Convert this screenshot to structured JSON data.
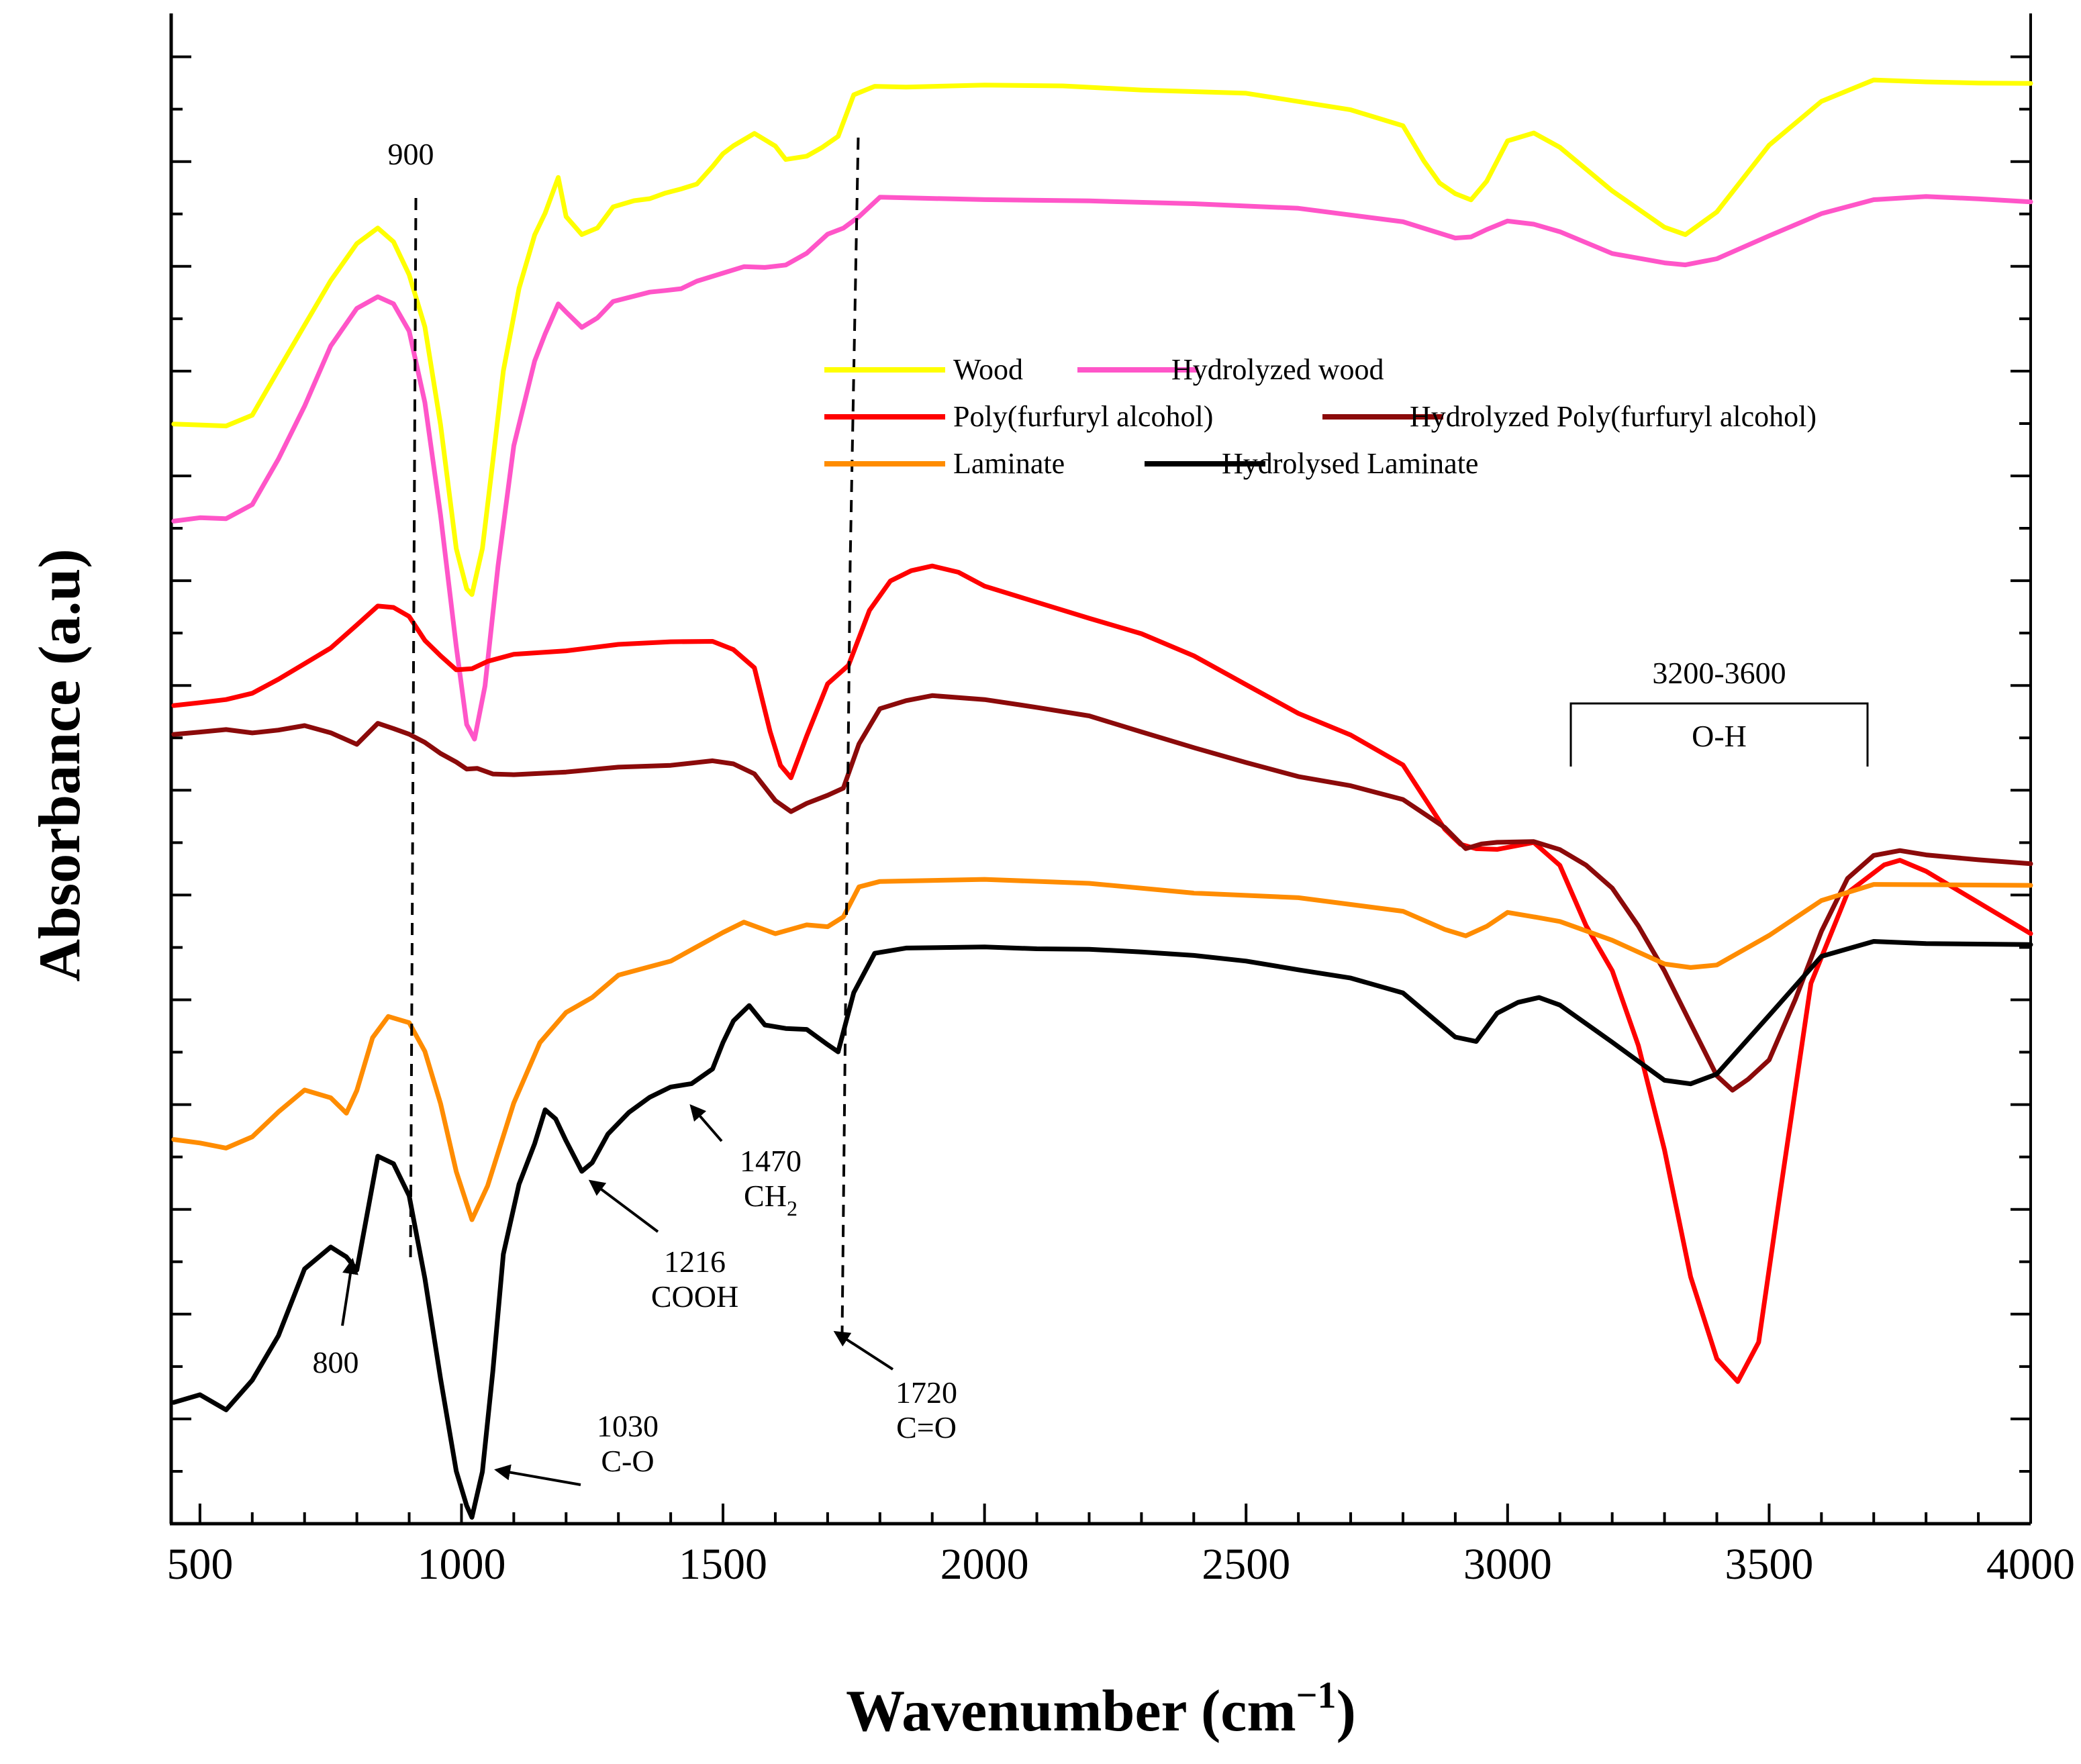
{
  "chart_data": {
    "type": "line",
    "xlabel": "Wavenumber (cm",
    "xlabel_sup": "−1",
    "xlabel_close": ")",
    "ylabel": "Absorbance (a.u)",
    "xlim": [
      445,
      4000
    ],
    "ylim": [
      0,
      100
    ],
    "x_ticks": [
      500,
      1000,
      1500,
      2000,
      2500,
      3000,
      3500,
      4000
    ],
    "y_tick_labels_shown": false,
    "grid": false,
    "legend_position": "upper-center",
    "series": [
      {
        "name": "Wood",
        "color": "#FFFF00",
        "x": [
          450,
          500,
          550,
          600,
          650,
          700,
          750,
          800,
          840,
          870,
          900,
          930,
          960,
          990,
          1010,
          1020,
          1040,
          1060,
          1080,
          1110,
          1140,
          1160,
          1185,
          1200,
          1230,
          1260,
          1290,
          1330,
          1360,
          1390,
          1420,
          1450,
          1480,
          1500,
          1520,
          1560,
          1600,
          1620,
          1660,
          1690,
          1720,
          1750,
          1790,
          1850,
          2000,
          2150,
          2300,
          2500,
          2700,
          2800,
          2840,
          2870,
          2900,
          2930,
          2960,
          3000,
          3050,
          3100,
          3200,
          3300,
          3340,
          3400,
          3500,
          3600,
          3700,
          3800,
          3900,
          4000
        ],
        "values": [
          73.5,
          73.4,
          73.3,
          74.0,
          77.0,
          80.0,
          83.0,
          85.5,
          86.5,
          85.5,
          83.5,
          80.0,
          73.5,
          65.0,
          62.5,
          62.0,
          65.0,
          71.0,
          77.0,
          82.5,
          86.0,
          87.5,
          90.0,
          87.5,
          86.0,
          86.5,
          88.0,
          88.2,
          88.5,
          89.0,
          89.2,
          89.5,
          90.5,
          91.5,
          92.0,
          93.0,
          92.0,
          91.0,
          91.5,
          92.0,
          92.5,
          95.5,
          96.0,
          96.1,
          96.3,
          96.2,
          95.8,
          95.5,
          94.5,
          93.5,
          91.0,
          89.5,
          89.0,
          88.5,
          89.5,
          92.5,
          93.0,
          92.0,
          89.0,
          86.5,
          86.3,
          87.5,
          92.0,
          95.0,
          96.5,
          96.4,
          96.3,
          96.2
        ]
      },
      {
        "name": "Hydrolyzed wood",
        "color": "#FF55C8",
        "x": [
          450,
          500,
          550,
          600,
          650,
          700,
          750,
          800,
          840,
          870,
          900,
          930,
          960,
          990,
          1010,
          1025,
          1045,
          1070,
          1100,
          1140,
          1160,
          1185,
          1200,
          1230,
          1260,
          1290,
          1330,
          1360,
          1390,
          1420,
          1450,
          1500,
          1540,
          1580,
          1620,
          1660,
          1700,
          1730,
          1760,
          1800,
          2000,
          2200,
          2400,
          2600,
          2800,
          2850,
          2900,
          2930,
          2960,
          3000,
          3050,
          3100,
          3200,
          3300,
          3340,
          3400,
          3500,
          3600,
          3700,
          3800,
          3900,
          4000
        ],
        "values": [
          67.0,
          67.2,
          67.1,
          68.0,
          71.0,
          74.5,
          78.5,
          81.0,
          82.0,
          81.5,
          79.5,
          75.0,
          67.5,
          58.5,
          53.5,
          52.5,
          56.0,
          64.0,
          72.0,
          77.5,
          79.5,
          81.5,
          81.0,
          80.0,
          80.5,
          81.5,
          82.0,
          82.2,
          82.3,
          82.7,
          83.0,
          83.5,
          84.0,
          83.8,
          84.2,
          85.0,
          86.0,
          86.5,
          87.5,
          88.5,
          88.5,
          88.5,
          88.2,
          87.8,
          87.0,
          86.5,
          86.0,
          86.0,
          86.5,
          87.2,
          87.0,
          86.5,
          85.0,
          84.3,
          84.2,
          84.5,
          86.0,
          87.5,
          88.5,
          88.8,
          88.7,
          88.5
        ]
      },
      {
        "name": "Poly(furfuryl alcohol)",
        "color": "#FF0000",
        "x": [
          450,
          500,
          550,
          600,
          650,
          700,
          750,
          800,
          840,
          870,
          900,
          930,
          960,
          990,
          1020,
          1050,
          1100,
          1200,
          1300,
          1400,
          1480,
          1520,
          1560,
          1590,
          1610,
          1630,
          1660,
          1700,
          1740,
          1780,
          1820,
          1860,
          1900,
          1950,
          2000,
          2100,
          2200,
          2300,
          2400,
          2500,
          2600,
          2700,
          2800,
          2880,
          2910,
          2940,
          2980,
          3050,
          3100,
          3150,
          3200,
          3250,
          3300,
          3350,
          3400,
          3440,
          3480,
          3520,
          3580,
          3650,
          3720,
          3750,
          3800,
          3900,
          4000
        ],
        "values": [
          54.8,
          55.0,
          55.2,
          55.6,
          56.5,
          57.5,
          58.5,
          60.0,
          61.5,
          61.2,
          60.5,
          59.0,
          58.0,
          57.2,
          57.0,
          57.5,
          58.0,
          58.3,
          58.8,
          59.0,
          59.0,
          58.5,
          57.0,
          53.0,
          50.5,
          49.8,
          52.5,
          56.0,
          57.5,
          61.0,
          63.0,
          63.7,
          63.8,
          63.4,
          62.5,
          61.5,
          60.5,
          59.5,
          58.0,
          56.0,
          54.0,
          52.5,
          50.5,
          46.5,
          45.5,
          45.0,
          45.2,
          45.5,
          44.0,
          40.0,
          37.0,
          32.0,
          25.0,
          16.5,
          11.0,
          9.5,
          12.0,
          22.0,
          36.0,
          42.0,
          44.0,
          44.2,
          43.5,
          41.5,
          39.5
        ]
      },
      {
        "name": "Hydrolyzed Poly(furfuryl alcohol)",
        "color": "#8B0A0A",
        "x": [
          450,
          500,
          550,
          600,
          650,
          700,
          750,
          800,
          840,
          870,
          900,
          930,
          960,
          990,
          1010,
          1030,
          1060,
          1100,
          1200,
          1300,
          1400,
          1480,
          1520,
          1560,
          1600,
          1630,
          1660,
          1700,
          1730,
          1760,
          1800,
          1850,
          1900,
          2000,
          2100,
          2200,
          2300,
          2400,
          2500,
          2600,
          2700,
          2800,
          2880,
          2920,
          2950,
          2980,
          3050,
          3100,
          3150,
          3200,
          3250,
          3300,
          3350,
          3400,
          3430,
          3460,
          3500,
          3550,
          3600,
          3650,
          3700,
          3750,
          3800,
          3900,
          4000
        ],
        "values": [
          52.8,
          53.0,
          53.2,
          53.0,
          53.2,
          53.5,
          53.0,
          52.2,
          53.5,
          53.2,
          52.8,
          52.0,
          51.5,
          51.0,
          50.5,
          50.3,
          50.2,
          50.0,
          50.2,
          50.6,
          50.8,
          51.0,
          50.7,
          50.0,
          48.5,
          47.5,
          48.0,
          48.8,
          49.0,
          52.0,
          54.5,
          55.0,
          55.3,
          55.0,
          54.5,
          54.0,
          53.0,
          52.0,
          51.0,
          50.0,
          49.3,
          48.3,
          46.5,
          45.0,
          45.3,
          45.6,
          45.5,
          45.0,
          44.0,
          42.5,
          40.0,
          37.0,
          33.5,
          30.0,
          29.0,
          29.5,
          31.0,
          35.0,
          39.5,
          43.0,
          44.5,
          44.8,
          44.5,
          44.2,
          44.0
        ]
      },
      {
        "name": "Laminate",
        "color": "#FF8C00",
        "x": [
          450,
          500,
          550,
          600,
          650,
          700,
          750,
          780,
          800,
          830,
          860,
          900,
          930,
          960,
          990,
          1020,
          1050,
          1100,
          1150,
          1200,
          1250,
          1300,
          1350,
          1400,
          1450,
          1500,
          1540,
          1600,
          1660,
          1700,
          1730,
          1760,
          1800,
          2000,
          2200,
          2400,
          2600,
          2800,
          2880,
          2920,
          2960,
          3000,
          3050,
          3100,
          3200,
          3300,
          3350,
          3400,
          3500,
          3600,
          3700,
          3800,
          4000
        ],
        "values": [
          25.5,
          25.3,
          25.0,
          25.8,
          27.5,
          29.0,
          28.5,
          27.5,
          29.0,
          32.5,
          33.8,
          33.5,
          31.5,
          28.0,
          23.5,
          20.5,
          22.5,
          28.0,
          32.0,
          34.0,
          35.0,
          36.5,
          37.0,
          37.5,
          38.5,
          39.5,
          40.0,
          39.5,
          40.0,
          40.0,
          40.5,
          42.5,
          43.0,
          43.0,
          42.7,
          42.2,
          42.0,
          41.0,
          39.5,
          39.3,
          40.0,
          40.8,
          40.5,
          40.2,
          39.0,
          37.5,
          37.3,
          37.5,
          39.5,
          41.8,
          42.8,
          42.7,
          42.6
        ]
      },
      {
        "name": "Hydrolysed Laminate",
        "color": "#000000",
        "x": [
          450,
          500,
          550,
          600,
          650,
          700,
          750,
          780,
          800,
          840,
          870,
          900,
          930,
          960,
          990,
          1010,
          1020,
          1040,
          1060,
          1080,
          1110,
          1140,
          1160,
          1180,
          1200,
          1230,
          1250,
          1280,
          1320,
          1360,
          1400,
          1440,
          1480,
          1500,
          1520,
          1550,
          1580,
          1620,
          1660,
          1700,
          1720,
          1750,
          1790,
          1850,
          2000,
          2100,
          2200,
          2300,
          2400,
          2500,
          2600,
          2700,
          2800,
          2850,
          2900,
          2940,
          2980,
          3020,
          3060,
          3100,
          3200,
          3300,
          3350,
          3400,
          3500,
          3600,
          3700,
          3800,
          4000
        ],
        "values": [
          8.0,
          8.5,
          7.5,
          9.5,
          12.5,
          17.0,
          18.5,
          18.0,
          17.0,
          24.5,
          24.0,
          22.0,
          16.5,
          9.5,
          3.5,
          1.0,
          0.5,
          3.5,
          10.0,
          18.0,
          22.5,
          25.5,
          27.5,
          27.0,
          25.5,
          23.5,
          24.0,
          26.0,
          27.5,
          28.5,
          29.0,
          29.5,
          30.5,
          32.0,
          33.5,
          34.5,
          33.5,
          33.0,
          33.0,
          32.0,
          31.5,
          35.5,
          38.0,
          38.5,
          38.5,
          38.3,
          38.2,
          38.0,
          37.8,
          37.5,
          37.0,
          36.5,
          35.5,
          34.0,
          32.5,
          32.2,
          34.0,
          35.0,
          35.2,
          34.5,
          32.0,
          29.5,
          29.3,
          30.0,
          34.0,
          38.0,
          39.0,
          38.8,
          38.6
        ]
      }
    ],
    "annotations": [
      {
        "id": "900",
        "lines": [
          "900"
        ],
        "x": 900
      },
      {
        "id": "800",
        "lines": [
          "800"
        ],
        "x": 800
      },
      {
        "id": "1030",
        "lines": [
          "1030",
          "C-O"
        ],
        "x": 1030
      },
      {
        "id": "1216",
        "lines": [
          "1216",
          "COOH"
        ],
        "x": 1216
      },
      {
        "id": "1470",
        "lines": [
          "1470",
          "CH"
        ],
        "subscript": "2",
        "x": 1470
      },
      {
        "id": "1720",
        "lines": [
          "1720",
          "C=O"
        ],
        "x": 1720
      },
      {
        "id": "oh",
        "lines": [
          "3200-3600",
          "O-H"
        ],
        "x_range": [
          3200,
          3600
        ]
      }
    ]
  }
}
